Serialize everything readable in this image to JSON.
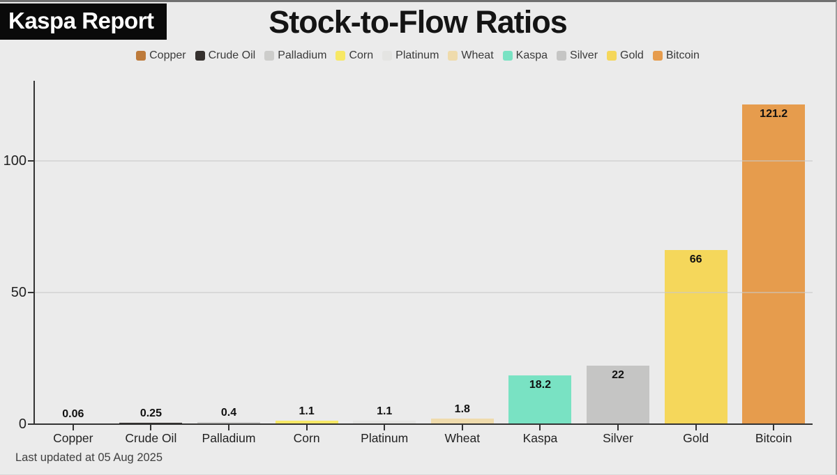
{
  "header": {
    "brand": "Kaspa Report",
    "title": "Stock-to-Flow Ratios"
  },
  "footer": {
    "last_updated": "Last updated at 05 Aug 2025"
  },
  "colors": {
    "background": "#ebebeb",
    "badge_background": "#0a0a0a",
    "badge_text": "#ffffff",
    "title_text": "#141414",
    "axis": "#333333",
    "gridline": "#c8c8c8",
    "tick_label": "#222222",
    "legend_text": "#3a3a3a",
    "value_label": "#101010",
    "footer_text": "#3f3f3f"
  },
  "chart_data": {
    "type": "bar",
    "title": "Stock-to-Flow Ratios",
    "categories": [
      "Copper",
      "Crude Oil",
      "Palladium",
      "Corn",
      "Platinum",
      "Wheat",
      "Kaspa",
      "Silver",
      "Gold",
      "Bitcoin"
    ],
    "values": [
      0.06,
      0.25,
      0.4,
      1.1,
      1.1,
      1.8,
      18.2,
      22,
      66,
      121.2
    ],
    "value_labels": [
      "0.06",
      "0.25",
      "0.4",
      "1.1",
      "1.1",
      "1.8",
      "18.2",
      "22",
      "66",
      "121.2"
    ],
    "bar_colors": [
      "#bd7a3a",
      "#35302e",
      "#cdcdcb",
      "#f7e865",
      "#e4e4e2",
      "#efdbac",
      "#79e2c3",
      "#c5c5c4",
      "#f5d75b",
      "#e69c4d"
    ],
    "legend": [
      "Copper",
      "Crude Oil",
      "Palladium",
      "Corn",
      "Platinum",
      "Wheat",
      "Kaspa",
      "Silver",
      "Gold",
      "Bitcoin"
    ],
    "legend_position": "top",
    "xlabel": "",
    "ylabel": "",
    "yticks": [
      0,
      50,
      100
    ],
    "ylim": [
      0,
      130
    ],
    "grid": "horizontal"
  }
}
